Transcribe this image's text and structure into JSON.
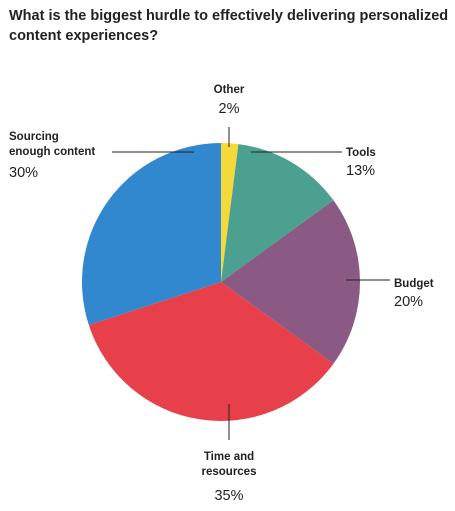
{
  "chart_data": {
    "type": "pie",
    "title": "What is the biggest hurdle to effectively delivering personalized content experiences?",
    "slices": [
      {
        "label": "Other",
        "label_lines": [
          "Other"
        ],
        "value": 2,
        "value_label": "2%",
        "color": "#f4d93a"
      },
      {
        "label": "Tools",
        "label_lines": [
          "Tools"
        ],
        "value": 13,
        "value_label": "13%",
        "color": "#4ba08f"
      },
      {
        "label": "Budget",
        "label_lines": [
          "Budget"
        ],
        "value": 20,
        "value_label": "20%",
        "color": "#8a5a84"
      },
      {
        "label": "Time and resources",
        "label_lines": [
          "Time and",
          "resources"
        ],
        "value": 35,
        "value_label": "35%",
        "color": "#e8404a"
      },
      {
        "label": "Sourcing enough content",
        "label_lines": [
          "Sourcing",
          "enough content"
        ],
        "value": 30,
        "value_label": "30%",
        "color": "#3288cf"
      }
    ],
    "start": "top",
    "direction": "clockwise",
    "legend": "none"
  }
}
